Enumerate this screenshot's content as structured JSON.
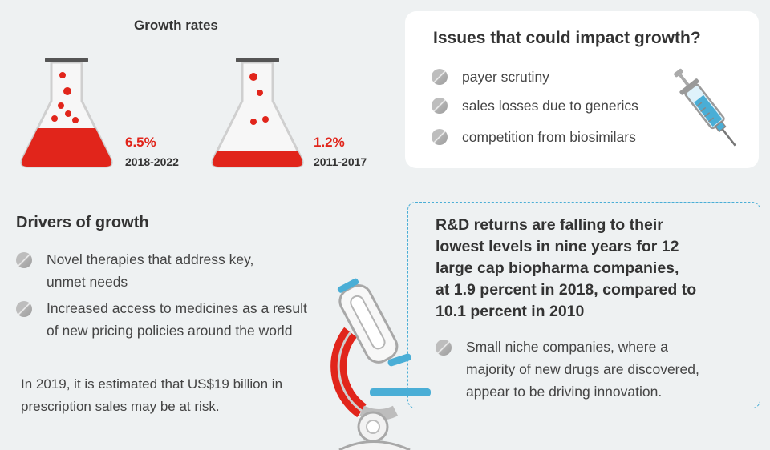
{
  "growth_rates": {
    "title": "Growth rates",
    "items": [
      {
        "percent": "6.5%",
        "period": "2018-2022",
        "fill_level": 0.45
      },
      {
        "percent": "1.2%",
        "period": "2011-2017",
        "fill_level": 0.18
      }
    ],
    "accent_color": "#e1251b"
  },
  "issues": {
    "title": "Issues that could impact growth?",
    "items": [
      "payer scrutiny",
      "sales losses due to generics",
      "competition from biosimilars"
    ],
    "icon": "syringe-icon"
  },
  "drivers": {
    "title": "Drivers of growth",
    "items": [
      {
        "line1": "Novel therapies that address key,",
        "line2": "unmet needs"
      },
      {
        "line1": "Increased access to medicines as a result",
        "line2": "of new pricing policies around the world"
      }
    ]
  },
  "risk_note": {
    "line1": "In 2019, it is estimated that US$19 billion in",
    "line2": "prescription sales may be at risk."
  },
  "rd_returns": {
    "headline_lines": [
      "R&D returns are falling to their",
      "lowest levels in nine years for 12",
      "large cap biopharma companies,",
      "at 1.9 percent in 2018, compared to",
      "10.1 percent in 2010"
    ],
    "bullet_lines": [
      "Small niche companies, where a",
      "majority of new drugs are discovered,",
      "appear to be driving innovation."
    ],
    "icon": "microscope-icon"
  },
  "colors": {
    "background": "#eef1f2",
    "red": "#e1251b",
    "blue": "#4aaed6",
    "card": "#ffffff"
  }
}
